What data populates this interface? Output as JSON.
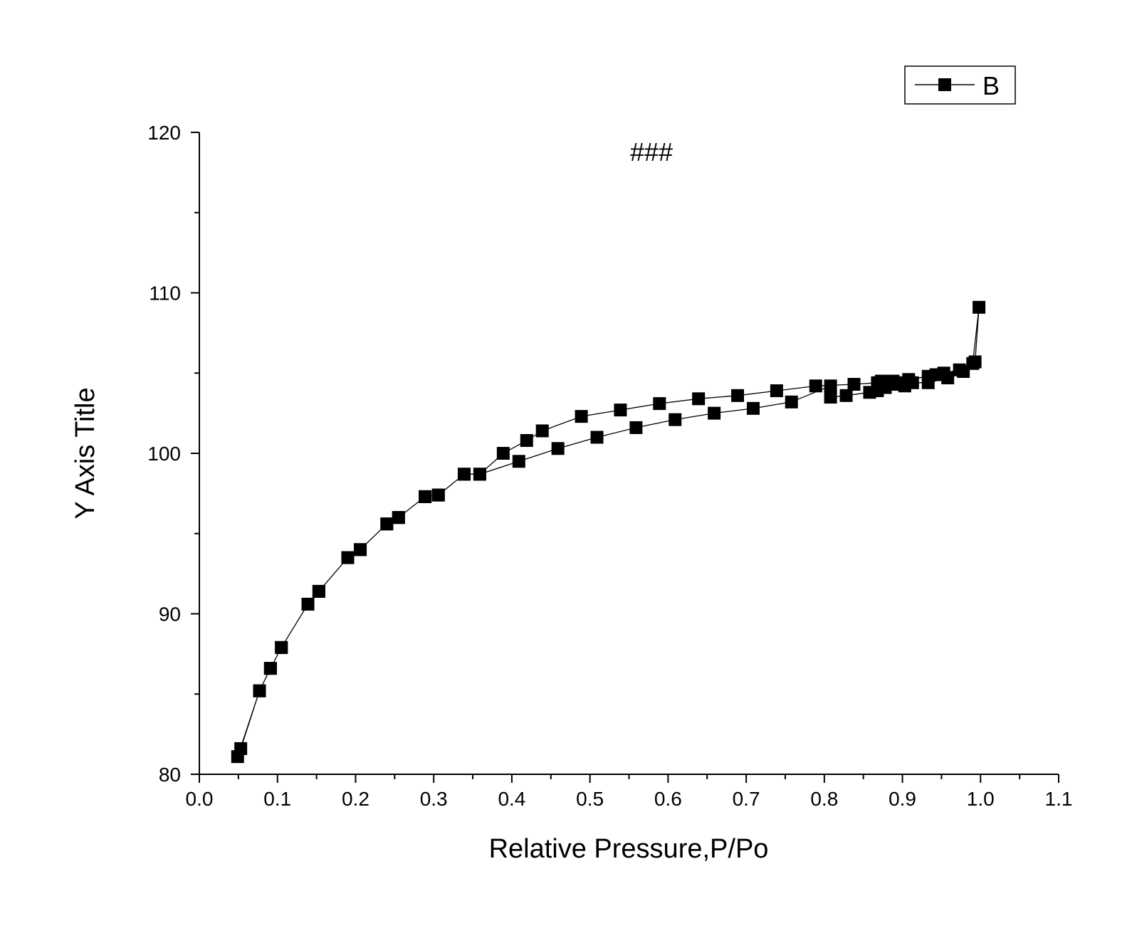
{
  "chart_data": {
    "type": "line",
    "title": "###",
    "xlabel": "Relative Pressure,P/Po",
    "ylabel": "Y Axis Title",
    "xlim": [
      0.0,
      1.1
    ],
    "ylim": [
      80,
      120
    ],
    "x_ticks": [
      "0.0",
      "0.1",
      "0.2",
      "0.3",
      "0.4",
      "0.5",
      "0.6",
      "0.7",
      "0.8",
      "0.9",
      "1.0",
      "1.1"
    ],
    "y_ticks": [
      "80",
      "90",
      "100",
      "110",
      "120"
    ],
    "grid": false,
    "legend": {
      "position": "top-right",
      "entries": [
        "B"
      ]
    },
    "marker": "filled-square",
    "series": [
      {
        "name": "B",
        "color": "#000000",
        "x": [
          0.049,
          0.077,
          0.091,
          0.105,
          0.139,
          0.153,
          0.19,
          0.206,
          0.24,
          0.255,
          0.289,
          0.306,
          0.339,
          0.359,
          0.389,
          0.419,
          0.439,
          0.489,
          0.539,
          0.589,
          0.639,
          0.689,
          0.739,
          0.789,
          0.838,
          0.868,
          0.873,
          0.878,
          0.883,
          0.888,
          0.898,
          0.908,
          0.933,
          0.943,
          0.953,
          0.973,
          0.993,
          0.998,
          0.99,
          0.978,
          0.958,
          0.933,
          0.913,
          0.903,
          0.893,
          0.878,
          0.868,
          0.858,
          0.828,
          0.808,
          0.808,
          0.758,
          0.709,
          0.659,
          0.609,
          0.559,
          0.509,
          0.459,
          0.409,
          0.359,
          0.339,
          0.306,
          0.289,
          0.255,
          0.24,
          0.206,
          0.19,
          0.153,
          0.139,
          0.105,
          0.091,
          0.077,
          0.053
        ],
        "y": [
          81.1,
          85.2,
          86.6,
          87.9,
          90.6,
          91.4,
          93.5,
          94.0,
          95.6,
          96.0,
          97.3,
          97.4,
          98.7,
          98.7,
          100.0,
          100.8,
          101.4,
          102.3,
          102.7,
          103.1,
          103.4,
          103.6,
          103.9,
          104.2,
          104.3,
          104.4,
          104.5,
          104.4,
          104.4,
          104.5,
          104.4,
          104.6,
          104.8,
          104.9,
          105.0,
          105.2,
          105.7,
          109.1,
          105.6,
          105.1,
          104.7,
          104.4,
          104.4,
          104.2,
          104.3,
          104.1,
          103.9,
          103.8,
          103.6,
          103.5,
          104.2,
          103.2,
          102.8,
          102.5,
          102.1,
          101.6,
          101.0,
          100.3,
          99.5,
          98.7,
          98.7,
          97.4,
          97.3,
          96.0,
          95.6,
          94.0,
          93.5,
          91.4,
          90.6,
          87.9,
          86.6,
          85.2,
          81.6
        ]
      }
    ]
  }
}
